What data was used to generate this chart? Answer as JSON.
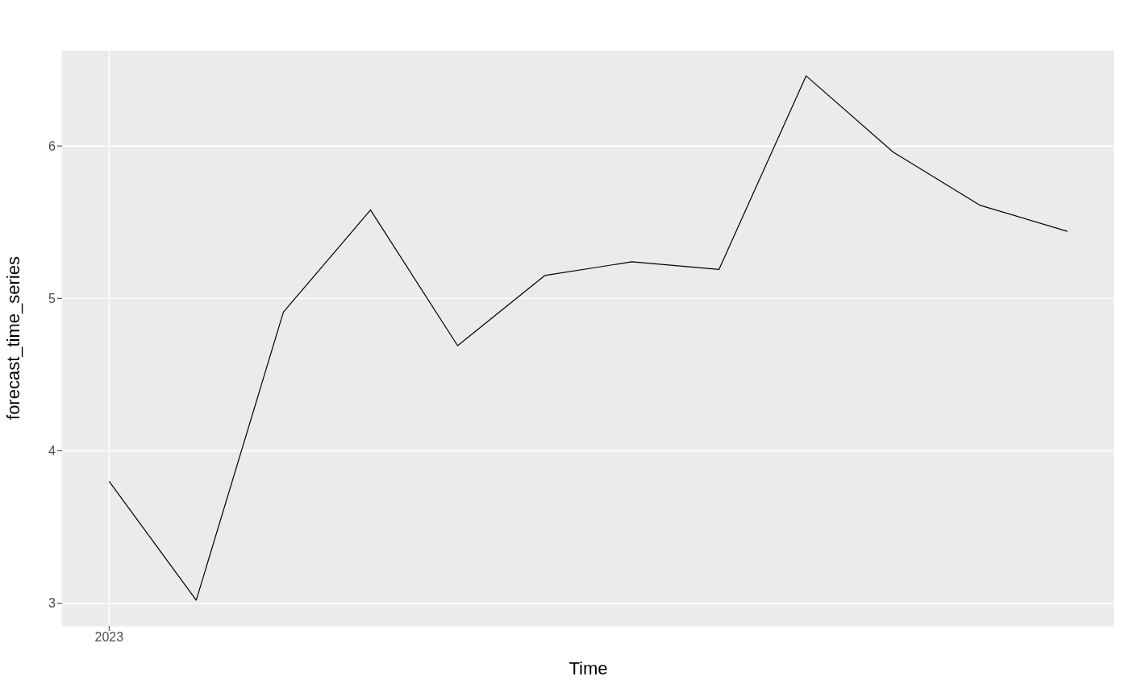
{
  "chart_data": {
    "type": "line",
    "xlabel": "Time",
    "ylabel": "forecast_time_series",
    "categories": [
      "2023",
      null,
      null,
      null,
      null,
      null,
      null,
      null,
      null,
      null,
      null,
      null
    ],
    "series": [
      {
        "color": "#000000",
        "values": [
          3.8,
          3.02,
          4.91,
          5.58,
          4.69,
          5.15,
          5.24,
          5.19,
          6.46,
          5.96,
          5.61,
          5.44
        ]
      }
    ],
    "ylim": [
      2.85,
      6.63
    ],
    "yticks": [
      3,
      4,
      5,
      6
    ],
    "grid": true,
    "legend": false,
    "marker": "none",
    "line_style": "solid"
  }
}
